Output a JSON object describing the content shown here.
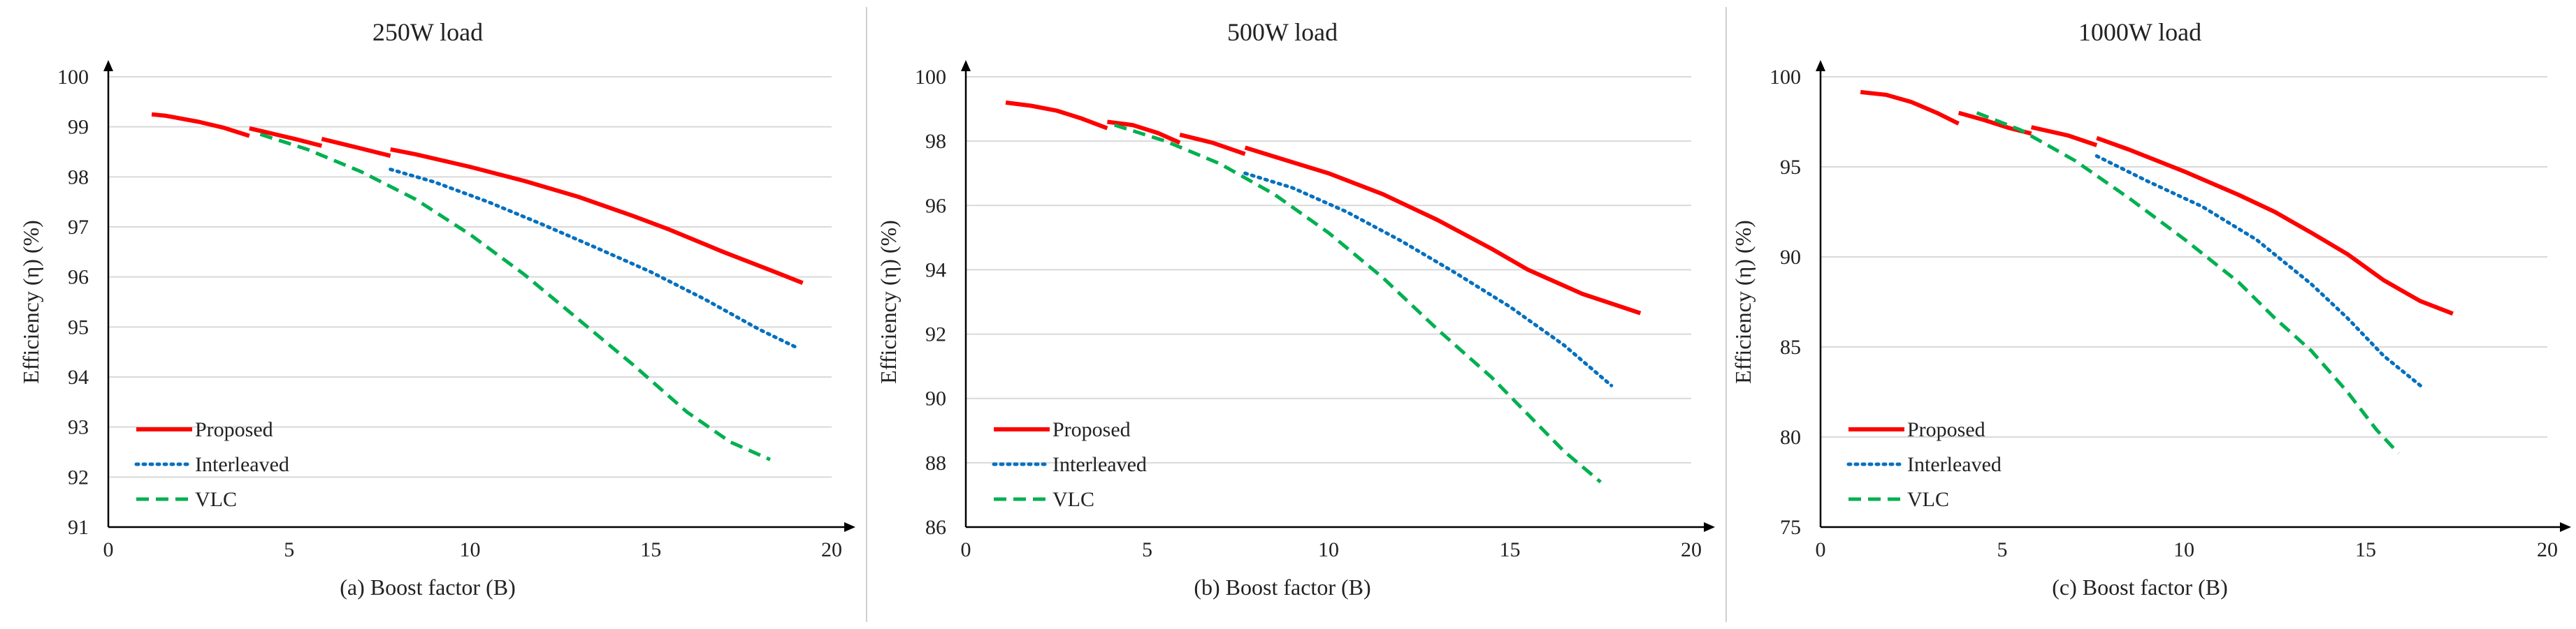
{
  "colors": {
    "proposed": "#ff0000",
    "interleaved": "#0070c0",
    "vlc": "#00b050"
  },
  "chart_data": [
    {
      "type": "line",
      "title": "250W load",
      "xlabel": "(a) Boost factor (B)",
      "ylabel": "Efficiency (η) (%)",
      "xlim": [
        0,
        20
      ],
      "ylim": [
        91,
        100
      ],
      "xticks": [
        0,
        5,
        10,
        15,
        20
      ],
      "yticks": [
        91,
        92,
        93,
        94,
        95,
        96,
        97,
        98,
        99,
        100
      ],
      "legend_position": "bottom-left",
      "series": [
        {
          "name": "Proposed",
          "style": "solid",
          "segments": [
            [
              [
                1.2,
                99.25
              ],
              [
                1.6,
                99.22
              ],
              [
                2.5,
                99.1
              ],
              [
                3.2,
                98.98
              ],
              [
                3.9,
                98.82
              ]
            ],
            [
              [
                3.9,
                98.97
              ],
              [
                4.5,
                98.87
              ],
              [
                5.2,
                98.75
              ],
              [
                5.9,
                98.62
              ]
            ],
            [
              [
                5.9,
                98.76
              ],
              [
                6.8,
                98.6
              ],
              [
                7.8,
                98.42
              ]
            ],
            [
              [
                7.8,
                98.55
              ],
              [
                8.5,
                98.45
              ],
              [
                10,
                98.2
              ],
              [
                11.5,
                97.92
              ],
              [
                13,
                97.6
              ],
              [
                14.5,
                97.22
              ],
              [
                15.5,
                96.95
              ],
              [
                17,
                96.5
              ],
              [
                18.5,
                96.08
              ],
              [
                19.2,
                95.88
              ]
            ]
          ]
        },
        {
          "name": "Interleaved",
          "style": "dotted",
          "segments": [
            [
              [
                7.8,
                98.15
              ],
              [
                9,
                97.9
              ],
              [
                10.5,
                97.5
              ],
              [
                12,
                97.05
              ],
              [
                13.5,
                96.58
              ],
              [
                15,
                96.1
              ],
              [
                16.5,
                95.55
              ],
              [
                18,
                94.95
              ],
              [
                19,
                94.6
              ]
            ]
          ]
        },
        {
          "name": "VLC",
          "style": "dashed",
          "segments": [
            [
              [
                4.2,
                98.85
              ],
              [
                5.5,
                98.55
              ],
              [
                7,
                98.1
              ],
              [
                8.5,
                97.55
              ],
              [
                10,
                96.85
              ],
              [
                11.5,
                96.05
              ],
              [
                13,
                95.15
              ],
              [
                14.5,
                94.25
              ],
              [
                16,
                93.3
              ],
              [
                17.2,
                92.7
              ],
              [
                18.3,
                92.35
              ]
            ]
          ]
        }
      ]
    },
    {
      "type": "line",
      "title": "500W load",
      "xlabel": "(b) Boost factor (B)",
      "ylabel": "Efficiency (η) (%)",
      "xlim": [
        0,
        20
      ],
      "ylim": [
        86,
        100
      ],
      "xticks": [
        0,
        5,
        10,
        15,
        20
      ],
      "yticks": [
        86,
        88,
        90,
        92,
        94,
        96,
        98,
        100
      ],
      "legend_position": "bottom-left",
      "series": [
        {
          "name": "Proposed",
          "style": "solid",
          "segments": [
            [
              [
                1.1,
                99.2
              ],
              [
                1.8,
                99.1
              ],
              [
                2.5,
                98.95
              ],
              [
                3.2,
                98.7
              ],
              [
                3.9,
                98.4
              ]
            ],
            [
              [
                3.9,
                98.6
              ],
              [
                4.6,
                98.5
              ],
              [
                5.3,
                98.25
              ],
              [
                5.9,
                97.95
              ]
            ],
            [
              [
                5.9,
                98.2
              ],
              [
                6.8,
                97.95
              ],
              [
                7.7,
                97.6
              ]
            ],
            [
              [
                7.7,
                97.8
              ],
              [
                8.7,
                97.45
              ],
              [
                10,
                97.0
              ],
              [
                11.5,
                96.35
              ],
              [
                13,
                95.55
              ],
              [
                14.5,
                94.65
              ],
              [
                15.5,
                94.0
              ],
              [
                17,
                93.25
              ],
              [
                18.6,
                92.65
              ]
            ]
          ]
        },
        {
          "name": "Interleaved",
          "style": "dotted",
          "segments": [
            [
              [
                7.7,
                97.0
              ],
              [
                9,
                96.55
              ],
              [
                10.5,
                95.8
              ],
              [
                12,
                94.9
              ],
              [
                13.5,
                93.9
              ],
              [
                15,
                92.85
              ],
              [
                16.5,
                91.65
              ],
              [
                17.8,
                90.4
              ]
            ]
          ]
        },
        {
          "name": "VLC",
          "style": "dashed",
          "segments": [
            [
              [
                4.1,
                98.5
              ],
              [
                5.5,
                98.0
              ],
              [
                7,
                97.3
              ],
              [
                8.5,
                96.35
              ],
              [
                10,
                95.15
              ],
              [
                11.5,
                93.75
              ],
              [
                13,
                92.15
              ],
              [
                14.5,
                90.65
              ],
              [
                15.5,
                89.5
              ],
              [
                16.5,
                88.35
              ],
              [
                17.5,
                87.4
              ]
            ]
          ]
        }
      ]
    },
    {
      "type": "line",
      "title": "1000W load",
      "xlabel": "(c) Boost factor (B)",
      "ylabel": "Efficiency (η) (%)",
      "xlim": [
        0,
        20
      ],
      "ylim": [
        75,
        100
      ],
      "xticks": [
        0,
        5,
        10,
        15,
        20
      ],
      "yticks": [
        75,
        80,
        85,
        90,
        95,
        100
      ],
      "legend_position": "bottom-left",
      "series": [
        {
          "name": "Proposed",
          "style": "solid",
          "segments": [
            [
              [
                1.1,
                99.15
              ],
              [
                1.8,
                99.0
              ],
              [
                2.5,
                98.6
              ],
              [
                3.2,
                98.0
              ],
              [
                3.8,
                97.4
              ]
            ],
            [
              [
                3.8,
                98.0
              ],
              [
                4.5,
                97.6
              ],
              [
                5.2,
                97.15
              ],
              [
                5.8,
                96.85
              ]
            ],
            [
              [
                5.8,
                97.2
              ],
              [
                6.8,
                96.75
              ],
              [
                7.6,
                96.2
              ]
            ],
            [
              [
                7.6,
                96.6
              ],
              [
                8.5,
                95.95
              ],
              [
                10,
                94.75
              ],
              [
                11.5,
                93.45
              ],
              [
                12.5,
                92.5
              ],
              [
                13.5,
                91.35
              ],
              [
                14.5,
                90.15
              ],
              [
                15.5,
                88.7
              ],
              [
                16.5,
                87.55
              ],
              [
                17.4,
                86.85
              ]
            ]
          ]
        },
        {
          "name": "Interleaved",
          "style": "dotted",
          "segments": [
            [
              [
                7.6,
                95.6
              ],
              [
                9,
                94.2
              ],
              [
                10.5,
                92.8
              ],
              [
                12,
                90.95
              ],
              [
                13.5,
                88.5
              ],
              [
                14.5,
                86.6
              ],
              [
                15.5,
                84.5
              ],
              [
                16.6,
                82.7
              ]
            ]
          ]
        },
        {
          "name": "VLC",
          "style": "dashed",
          "segments": [
            [
              [
                4.3,
                98.0
              ],
              [
                5.5,
                97.05
              ],
              [
                7,
                95.35
              ],
              [
                8.5,
                93.25
              ],
              [
                10,
                91.0
              ],
              [
                11.5,
                88.6
              ],
              [
                12.5,
                86.6
              ],
              [
                13.5,
                84.8
              ],
              [
                14.5,
                82.5
              ],
              [
                15.3,
                80.4
              ],
              [
                15.9,
                79.1
              ]
            ]
          ]
        }
      ]
    }
  ]
}
